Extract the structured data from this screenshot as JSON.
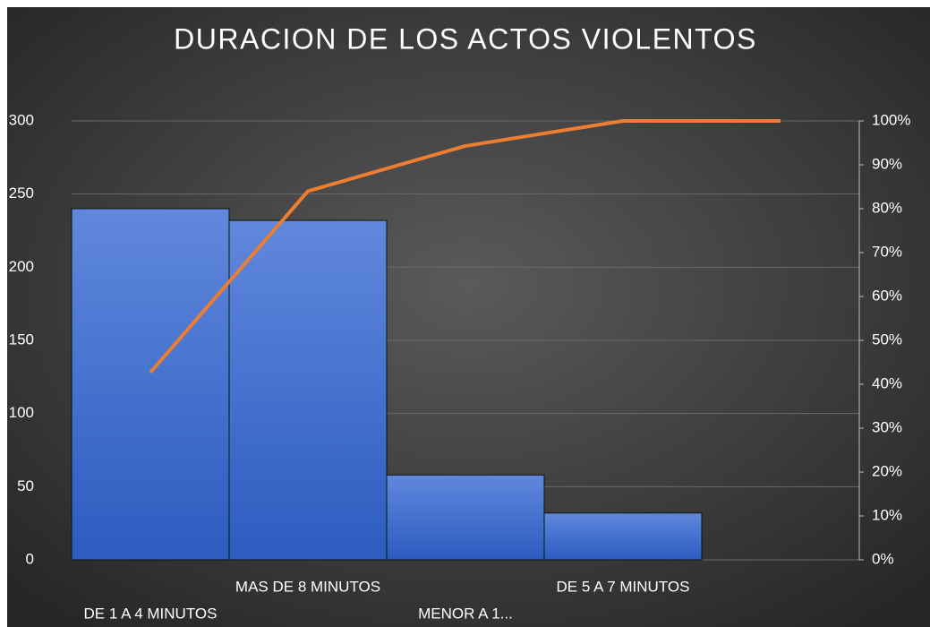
{
  "chart_data": {
    "type": "pareto",
    "title": "DURACION DE LOS ACTOS VIOLENTOS",
    "categories": [
      "DE 1 A 4 MINUTOS",
      "MAS DE 8 MINUTOS",
      "MENOR A 1...",
      "DE 5 A 7 MINUTOS",
      null
    ],
    "series": [
      {
        "color": "#3f6fd0",
        "values": [
          240,
          232,
          58,
          32,
          null
        ]
      },
      {
        "color": "#ed7d31",
        "axis": "y2",
        "values": [
          42.7,
          84.0,
          94.3,
          100,
          100
        ]
      }
    ],
    "ylim": [
      0,
      300
    ],
    "yticks": [
      0,
      50,
      100,
      150,
      200,
      250,
      300
    ],
    "y2lim": [
      0,
      100
    ],
    "y2ticks": [
      {
        "value": 0,
        "label": "0%"
      },
      {
        "value": 10,
        "label": "10%"
      },
      {
        "value": 20,
        "label": "20%"
      },
      {
        "value": 30,
        "label": "30%"
      },
      {
        "value": 40,
        "label": "40%"
      },
      {
        "value": 50,
        "label": "50%"
      },
      {
        "value": 60,
        "label": "60%"
      },
      {
        "value": 70,
        "label": "70%"
      },
      {
        "value": 80,
        "label": "80%"
      },
      {
        "value": 90,
        "label": "90%"
      },
      {
        "value": 100,
        "label": "100%"
      }
    ],
    "grid": true
  }
}
